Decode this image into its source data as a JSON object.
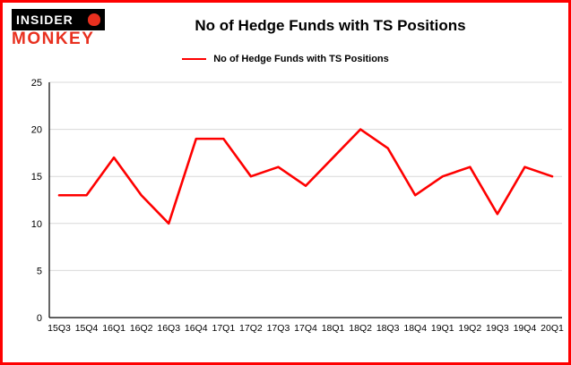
{
  "logo": {
    "line1": "INSIDER",
    "line2": "MONKEY"
  },
  "header": {
    "title": "No of Hedge Funds with TS Positions"
  },
  "legend": {
    "label": "No of Hedge Funds with TS Positions"
  },
  "colors": {
    "border": "#fe0000",
    "line": "#fe0000",
    "logo_red": "#e8301f",
    "grid": "#d9d9d9",
    "axis": "#000000",
    "text": "#000000"
  },
  "chart_data": {
    "type": "line",
    "title": "No of Hedge Funds with TS Positions",
    "categories": [
      "15Q3",
      "15Q4",
      "16Q1",
      "16Q2",
      "16Q3",
      "16Q4",
      "17Q1",
      "17Q2",
      "17Q3",
      "17Q4",
      "18Q1",
      "18Q2",
      "18Q3",
      "18Q4",
      "19Q1",
      "19Q2",
      "19Q3",
      "19Q4",
      "20Q1"
    ],
    "series": [
      {
        "name": "No of Hedge Funds with TS Positions",
        "color": "#fe0000",
        "values": [
          13,
          13,
          17,
          13,
          10,
          19,
          19,
          15,
          16,
          14,
          17,
          20,
          18,
          13,
          15,
          16,
          11,
          16,
          15
        ]
      }
    ],
    "xlabel": "",
    "ylabel": "",
    "ylim": [
      0,
      25
    ],
    "yticks": [
      0,
      5,
      10,
      15,
      20,
      25
    ],
    "grid": true,
    "legend_position": "top"
  }
}
